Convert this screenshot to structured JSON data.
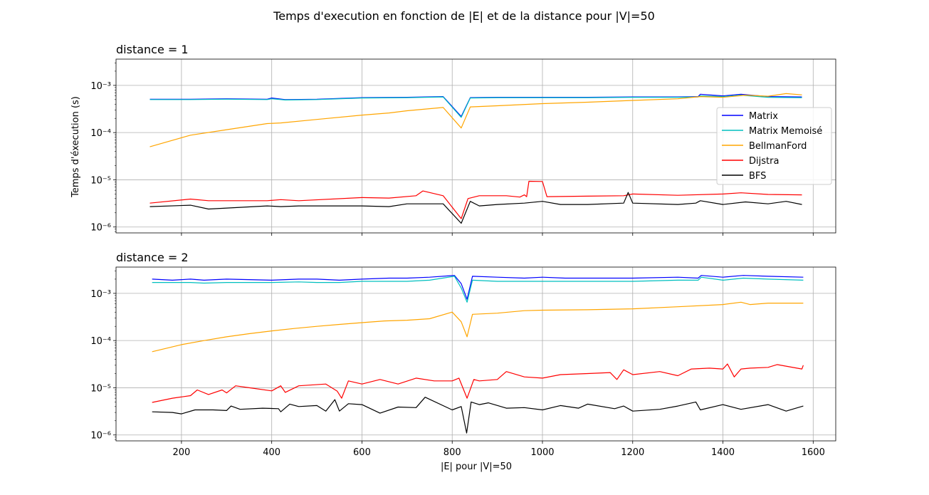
{
  "figure": {
    "suptitle": "Temps d'execution en fonction de |E| et de la distance pour |V|=50"
  },
  "colors": {
    "Matrix": "#0000ff",
    "Matrix Memoisé": "#00bfbf",
    "BellmanFord": "#ffa500",
    "Dijstra": "#ff0000",
    "BFS": "#000000",
    "grid": "#b0b0b0"
  },
  "chart_data": [
    {
      "type": "line",
      "title": "distance = 1",
      "xlabel": "",
      "ylabel": "Temps d'éxecution (s)",
      "yscale": "log",
      "xlim": [
        55,
        1650
      ],
      "ylim": [
        7.5e-07,
        0.0036
      ],
      "xticks": [
        200,
        400,
        600,
        800,
        1000,
        1200,
        1400,
        1600
      ],
      "xticklabels": [
        "",
        "",
        "",
        "",
        "",
        "",
        "",
        ""
      ],
      "yticks": [
        1e-06,
        1e-05,
        0.0001,
        0.001
      ],
      "yticklabels": [
        "10⁻⁶",
        "10⁻⁵",
        "10⁻⁴",
        "10⁻³"
      ],
      "grid": true,
      "legend": "center right",
      "series": [
        {
          "name": "Matrix",
          "x": [
            130,
            220,
            300,
            390,
            400,
            430,
            500,
            600,
            700,
            780,
            820,
            840,
            900,
            1000,
            1100,
            1200,
            1300,
            1345,
            1350,
            1400,
            1440,
            1500,
            1575
          ],
          "y": [
            0.00051,
            0.00051,
            0.00052,
            0.00051,
            0.00054,
            0.0005,
            0.00051,
            0.00055,
            0.00056,
            0.00058,
            0.00022,
            0.00055,
            0.00056,
            0.00056,
            0.00056,
            0.00057,
            0.00057,
            0.00058,
            0.00065,
            0.0006,
            0.00065,
            0.00058,
            0.00057
          ]
        },
        {
          "name": "Matrix Memoisé",
          "x": [
            130,
            220,
            300,
            390,
            400,
            430,
            500,
            600,
            700,
            780,
            820,
            840,
            900,
            1000,
            1100,
            1200,
            1300,
            1345,
            1350,
            1400,
            1440,
            1500,
            1575
          ],
          "y": [
            0.0005,
            0.0005,
            0.00051,
            0.0005,
            0.00052,
            0.00049,
            0.0005,
            0.00054,
            0.00055,
            0.00057,
            0.00021,
            0.00054,
            0.00055,
            0.00055,
            0.00055,
            0.00056,
            0.00056,
            0.00057,
            0.0006,
            0.00058,
            0.00062,
            0.00056,
            0.00055
          ]
        },
        {
          "name": "BellmanFord",
          "x": [
            130,
            220,
            300,
            390,
            420,
            500,
            600,
            660,
            700,
            780,
            820,
            840,
            900,
            1000,
            1100,
            1200,
            1300,
            1350,
            1400,
            1450,
            1500,
            1540,
            1575
          ],
          "y": [
            5e-05,
            8.8e-05,
            0.000115,
            0.000155,
            0.00016,
            0.00019,
            0.000235,
            0.00026,
            0.00029,
            0.00034,
            0.000125,
            0.00035,
            0.00037,
            0.00041,
            0.00044,
            0.00048,
            0.00052,
            0.00058,
            0.00056,
            0.00062,
            0.00059,
            0.00067,
            0.00063
          ]
        },
        {
          "name": "Dijstra",
          "x": [
            130,
            220,
            260,
            390,
            420,
            460,
            600,
            660,
            720,
            735,
            780,
            820,
            835,
            860,
            920,
            950,
            960,
            965,
            970,
            1000,
            1010,
            1100,
            1180,
            1200,
            1300,
            1400,
            1440,
            1500,
            1575
          ],
          "y": [
            3.2e-06,
            3.9e-06,
            3.6e-06,
            3.6e-06,
            3.8e-06,
            3.6e-06,
            4.2e-06,
            4.1e-06,
            4.6e-06,
            5.8e-06,
            4.6e-06,
            1.5e-06,
            4e-06,
            4.6e-06,
            4.6e-06,
            4.3e-06,
            4.8e-06,
            4.4e-06,
            9.3e-06,
            9.2e-06,
            4.4e-06,
            4.5e-06,
            4.6e-06,
            5e-06,
            4.7e-06,
            5e-06,
            5.3e-06,
            4.9e-06,
            4.8e-06
          ]
        },
        {
          "name": "BFS",
          "x": [
            130,
            220,
            260,
            390,
            420,
            460,
            600,
            660,
            700,
            780,
            820,
            840,
            860,
            900,
            960,
            1000,
            1040,
            1100,
            1180,
            1190,
            1200,
            1300,
            1340,
            1350,
            1400,
            1450,
            1500,
            1540,
            1575
          ],
          "y": [
            2.7e-06,
            2.9e-06,
            2.4e-06,
            2.8e-06,
            2.7e-06,
            2.8e-06,
            2.8e-06,
            2.7e-06,
            3.1e-06,
            3.1e-06,
            1.2e-06,
            3.5e-06,
            2.8e-06,
            3e-06,
            3.2e-06,
            3.5e-06,
            3e-06,
            3e-06,
            3.2e-06,
            5.4e-06,
            3.2e-06,
            3e-06,
            3.2e-06,
            3.6e-06,
            3e-06,
            3.4e-06,
            3.1e-06,
            3.5e-06,
            3e-06
          ]
        }
      ]
    },
    {
      "type": "line",
      "title": "distance = 2",
      "xlabel": "|E| pour |V|=50",
      "ylabel": "",
      "yscale": "log",
      "xlim": [
        55,
        1650
      ],
      "ylim": [
        7.5e-07,
        0.0036
      ],
      "xticks": [
        200,
        400,
        600,
        800,
        1000,
        1200,
        1400,
        1600
      ],
      "xticklabels": [
        "200",
        "400",
        "600",
        "800",
        "1000",
        "1200",
        "1400",
        "1600"
      ],
      "yticks": [
        1e-06,
        1e-05,
        0.0001,
        0.001
      ],
      "yticklabels": [
        "10⁻⁶",
        "10⁻⁵",
        "10⁻⁴",
        "10⁻³"
      ],
      "grid": true,
      "series": [
        {
          "name": "Matrix",
          "x": [
            135,
            180,
            220,
            250,
            300,
            400,
            460,
            500,
            550,
            600,
            660,
            700,
            750,
            805,
            820,
            833,
            845,
            900,
            960,
            1000,
            1050,
            1100,
            1200,
            1300,
            1345,
            1352,
            1400,
            1445,
            1500,
            1578
          ],
          "y": [
            0.002,
            0.0019,
            0.002,
            0.0019,
            0.002,
            0.0019,
            0.002,
            0.002,
            0.0019,
            0.002,
            0.0021,
            0.0021,
            0.0022,
            0.0024,
            0.0016,
            0.00075,
            0.0023,
            0.0022,
            0.0021,
            0.0022,
            0.0021,
            0.0021,
            0.0021,
            0.0022,
            0.0021,
            0.0024,
            0.0022,
            0.0024,
            0.0023,
            0.0022
          ]
        },
        {
          "name": "Matrix Memoisé",
          "x": [
            135,
            180,
            220,
            250,
            300,
            400,
            460,
            500,
            550,
            600,
            660,
            700,
            750,
            805,
            820,
            833,
            845,
            900,
            960,
            1000,
            1050,
            1100,
            1200,
            1300,
            1345,
            1352,
            1400,
            1445,
            1500,
            1578
          ],
          "y": [
            0.0017,
            0.0017,
            0.0017,
            0.00165,
            0.0017,
            0.0017,
            0.00175,
            0.0017,
            0.0017,
            0.0018,
            0.0018,
            0.0018,
            0.0019,
            0.0023,
            0.0013,
            0.00065,
            0.0019,
            0.0018,
            0.0018,
            0.0018,
            0.0018,
            0.0018,
            0.0018,
            0.0019,
            0.0019,
            0.0022,
            0.0019,
            0.0021,
            0.002,
            0.0019
          ]
        },
        {
          "name": "BellmanFord",
          "x": [
            135,
            200,
            250,
            300,
            350,
            400,
            450,
            500,
            550,
            600,
            650,
            700,
            750,
            800,
            820,
            833,
            845,
            900,
            960,
            1000,
            1100,
            1200,
            1300,
            1400,
            1440,
            1460,
            1500,
            1578
          ],
          "y": [
            5.8e-05,
            8.2e-05,
            0.0001,
            0.00012,
            0.00014,
            0.00016,
            0.00018,
            0.0002,
            0.00022,
            0.00024,
            0.00026,
            0.00027,
            0.00029,
            0.0004,
            0.00025,
            0.00012,
            0.00036,
            0.00038,
            0.00043,
            0.00044,
            0.00045,
            0.00047,
            0.00052,
            0.00058,
            0.00065,
            0.00058,
            0.00062,
            0.00062
          ]
        },
        {
          "name": "Dijstra",
          "x": [
            135,
            180,
            220,
            235,
            260,
            290,
            300,
            320,
            350,
            400,
            420,
            430,
            460,
            520,
            545,
            555,
            570,
            600,
            640,
            680,
            720,
            760,
            800,
            815,
            833,
            848,
            860,
            900,
            920,
            960,
            1000,
            1040,
            1100,
            1150,
            1165,
            1180,
            1200,
            1260,
            1300,
            1330,
            1370,
            1400,
            1410,
            1425,
            1440,
            1460,
            1500,
            1520,
            1575,
            1578
          ],
          "y": [
            4.9e-06,
            6e-06,
            6.8e-06,
            9e-06,
            7.2e-06,
            9e-06,
            7.8e-06,
            1.1e-05,
            1e-05,
            8.6e-06,
            1.1e-05,
            8e-06,
            1.1e-05,
            1.2e-05,
            8.5e-06,
            6e-06,
            1.4e-05,
            1.2e-05,
            1.5e-05,
            1.2e-05,
            1.6e-05,
            1.4e-05,
            1.4e-05,
            1.6e-05,
            6e-06,
            1.5e-05,
            1.4e-05,
            1.5e-05,
            2.2e-05,
            1.7e-05,
            1.6e-05,
            1.9e-05,
            2e-05,
            2.1e-05,
            1.5e-05,
            2.4e-05,
            1.9e-05,
            2.2e-05,
            1.8e-05,
            2.5e-05,
            2.6e-05,
            2.5e-05,
            3.2e-05,
            1.7e-05,
            2.5e-05,
            2.6e-05,
            2.7e-05,
            3.1e-05,
            2.5e-05,
            3e-05
          ]
        },
        {
          "name": "BFS",
          "x": [
            135,
            180,
            200,
            230,
            270,
            300,
            310,
            330,
            380,
            415,
            420,
            440,
            460,
            500,
            520,
            540,
            550,
            570,
            600,
            640,
            680,
            720,
            740,
            800,
            820,
            832,
            842,
            860,
            880,
            920,
            960,
            1000,
            1040,
            1080,
            1100,
            1160,
            1180,
            1200,
            1260,
            1300,
            1340,
            1350,
            1400,
            1440,
            1500,
            1540,
            1578
          ],
          "y": [
            3.1e-06,
            3e-06,
            2.8e-06,
            3.4e-06,
            3.4e-06,
            3.3e-06,
            4.1e-06,
            3.5e-06,
            3.7e-06,
            3.6e-06,
            3.1e-06,
            4.5e-06,
            4e-06,
            4.2e-06,
            3.2e-06,
            5.6e-06,
            3.2e-06,
            4.6e-06,
            4.4e-06,
            2.9e-06,
            3.9e-06,
            3.8e-06,
            6.3e-06,
            3.4e-06,
            4e-06,
            1.1e-06,
            5e-06,
            4.4e-06,
            4.8e-06,
            3.7e-06,
            3.8e-06,
            3.4e-06,
            4.2e-06,
            3.7e-06,
            4.5e-06,
            3.6e-06,
            4.1e-06,
            3.2e-06,
            3.5e-06,
            4.1e-06,
            5e-06,
            3.4e-06,
            4.4e-06,
            3.5e-06,
            4.4e-06,
            3.2e-06,
            4.1e-06
          ]
        }
      ]
    }
  ]
}
